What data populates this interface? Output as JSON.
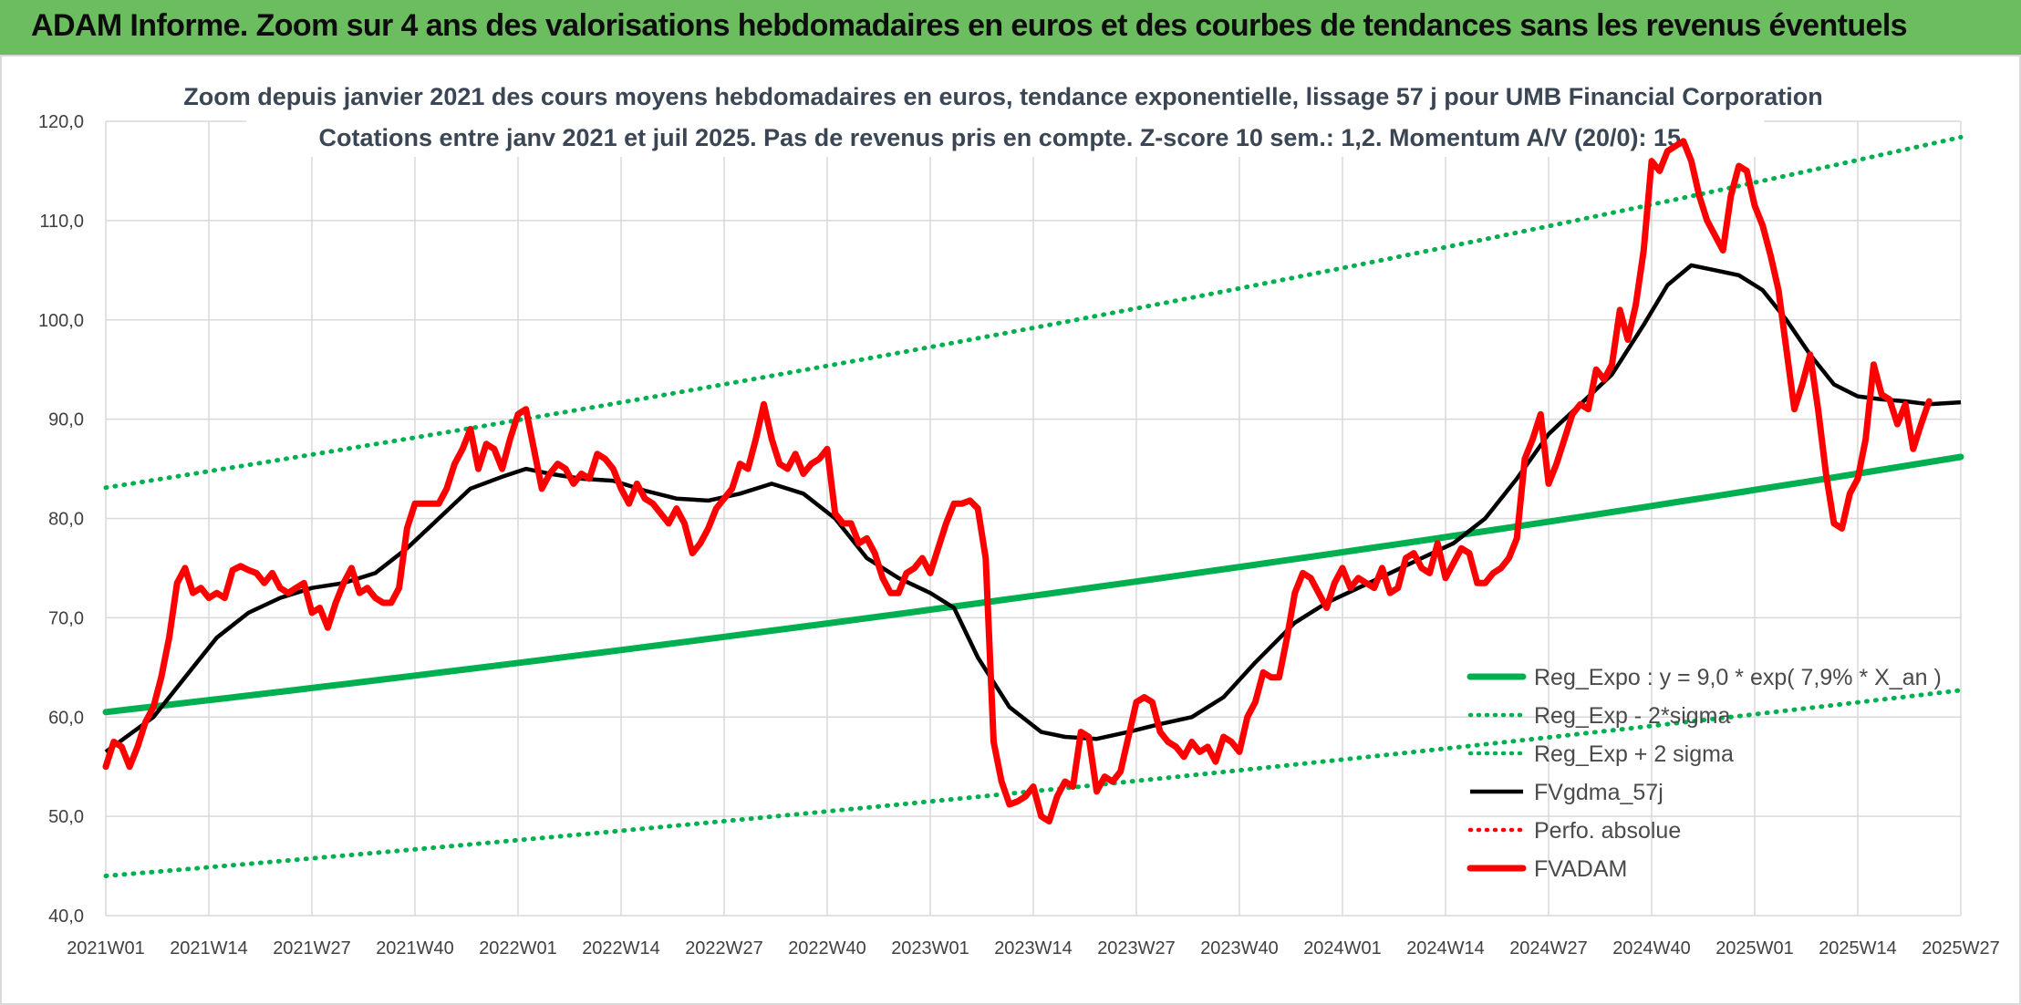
{
  "header": {
    "title": "ADAM Informe. Zoom sur 4 ans des valorisations hebdomadaires en euros et des courbes de tendances sans les revenus éventuels"
  },
  "colors": {
    "header_bg": "#6cbd5f",
    "reg_expo": "#00b050",
    "sigma_bands": "#00b050",
    "fvgdma": "#000000",
    "perfo_absolue": "#ff0000",
    "fvadam": "#ff0000"
  },
  "chart_data": {
    "type": "line",
    "title": "Zoom depuis janvier 2021 des cours moyens hebdomadaires en euros, tendance exponentielle, lissage 57 j pour UMB Financial Corporation",
    "subtitle": "Cotations entre janv 2021 et juil 2025. Pas de revenus pris en compte. Z-score 10 sem.: 1,2. Momentum A/V (20/0): 15.",
    "xlabel": "",
    "ylabel": "",
    "ylim": [
      40,
      120
    ],
    "yticks": [
      "40,0",
      "50,0",
      "60,0",
      "70,0",
      "80,0",
      "90,0",
      "100,0",
      "110,0",
      "120,0"
    ],
    "xticks": [
      "2021W01",
      "2021W14",
      "2021W27",
      "2021W40",
      "2022W01",
      "2022W14",
      "2022W27",
      "2022W40",
      "2023W01",
      "2023W14",
      "2023W27",
      "2023W40",
      "2024W01",
      "2024W14",
      "2024W27",
      "2024W40",
      "2025W01",
      "2025W14",
      "2025W27"
    ],
    "x_range_weeks": [
      0,
      234
    ],
    "grid": true,
    "legend_position": "bottom-right",
    "series": [
      {
        "name": "Reg_Expo : y = 9,0 * exp( 7,9% *  X_an )",
        "style": "solid-thick",
        "color": "#00b050",
        "x": [
          0,
          234
        ],
        "growth_per_year": 0.079,
        "y_start": 60.5,
        "y_end": 86.2
      },
      {
        "name": "Reg_Exp - 2*sigma",
        "style": "dotted",
        "color": "#00b050",
        "x": [
          0,
          234
        ],
        "y_start": 44.0,
        "y_end": 62.7
      },
      {
        "name": "Reg_Exp + 2 sigma",
        "style": "dotted",
        "color": "#00b050",
        "x": [
          0,
          234
        ],
        "y_start": 83.1,
        "y_end": 118.4
      },
      {
        "name": "FVgdma_57j",
        "style": "solid",
        "color": "#000000",
        "points": [
          [
            0,
            56.5
          ],
          [
            6,
            60.0
          ],
          [
            10,
            64.0
          ],
          [
            14,
            68.0
          ],
          [
            18,
            70.5
          ],
          [
            22,
            72.0
          ],
          [
            26,
            73.0
          ],
          [
            30,
            73.5
          ],
          [
            34,
            74.5
          ],
          [
            38,
            77.0
          ],
          [
            42,
            80.0
          ],
          [
            46,
            83.0
          ],
          [
            50,
            84.2
          ],
          [
            53,
            85.0
          ],
          [
            56,
            84.5
          ],
          [
            60,
            84.0
          ],
          [
            64,
            83.8
          ],
          [
            68,
            82.8
          ],
          [
            72,
            82.0
          ],
          [
            76,
            81.8
          ],
          [
            80,
            82.5
          ],
          [
            84,
            83.5
          ],
          [
            88,
            82.5
          ],
          [
            92,
            80.0
          ],
          [
            96,
            76.0
          ],
          [
            100,
            74.0
          ],
          [
            104,
            72.5
          ],
          [
            107,
            71.0
          ],
          [
            110,
            66.0
          ],
          [
            114,
            61.0
          ],
          [
            118,
            58.5
          ],
          [
            121,
            58.0
          ],
          [
            125,
            57.8
          ],
          [
            129,
            58.5
          ],
          [
            133,
            59.3
          ],
          [
            137,
            60.0
          ],
          [
            141,
            62.0
          ],
          [
            145,
            65.5
          ],
          [
            150,
            69.5
          ],
          [
            154,
            71.5
          ],
          [
            158,
            73.0
          ],
          [
            162,
            74.5
          ],
          [
            166,
            76.0
          ],
          [
            170,
            77.5
          ],
          [
            174,
            80.0
          ],
          [
            178,
            84.0
          ],
          [
            182,
            88.5
          ],
          [
            186,
            91.5
          ],
          [
            190,
            94.5
          ],
          [
            194,
            99.5
          ],
          [
            197,
            103.5
          ],
          [
            200,
            105.5
          ],
          [
            203,
            105.0
          ],
          [
            206,
            104.5
          ],
          [
            209,
            103.0
          ],
          [
            212,
            100.0
          ],
          [
            215,
            96.5
          ],
          [
            218,
            93.5
          ],
          [
            221,
            92.3
          ],
          [
            224,
            92.0
          ],
          [
            227,
            91.8
          ],
          [
            230,
            91.5
          ],
          [
            234,
            91.7
          ]
        ]
      },
      {
        "name": "Perfo. absolue",
        "style": "dotted",
        "color": "#ff0000",
        "points": []
      },
      {
        "name": "FVADAM",
        "style": "solid-thick",
        "color": "#ff0000",
        "points": [
          [
            0,
            55.0
          ],
          [
            1,
            57.5
          ],
          [
            2,
            57.0
          ],
          [
            3,
            55.0
          ],
          [
            4,
            57.0
          ],
          [
            5,
            59.5
          ],
          [
            6,
            61.0
          ],
          [
            7,
            64.0
          ],
          [
            8,
            68.0
          ],
          [
            9,
            73.5
          ],
          [
            10,
            75.0
          ],
          [
            11,
            72.5
          ],
          [
            12,
            73.0
          ],
          [
            13,
            72.0
          ],
          [
            14,
            72.5
          ],
          [
            15,
            72.0
          ],
          [
            16,
            74.8
          ],
          [
            17,
            75.2
          ],
          [
            18,
            74.8
          ],
          [
            19,
            74.5
          ],
          [
            20,
            73.5
          ],
          [
            21,
            74.5
          ],
          [
            22,
            73.0
          ],
          [
            23,
            72.5
          ],
          [
            24,
            73.0
          ],
          [
            25,
            73.5
          ],
          [
            26,
            70.5
          ],
          [
            27,
            71.0
          ],
          [
            28,
            69.0
          ],
          [
            29,
            71.5
          ],
          [
            30,
            73.5
          ],
          [
            31,
            75.0
          ],
          [
            32,
            72.5
          ],
          [
            33,
            73.0
          ],
          [
            34,
            72.0
          ],
          [
            35,
            71.5
          ],
          [
            36,
            71.5
          ],
          [
            37,
            73.0
          ],
          [
            38,
            79.0
          ],
          [
            39,
            81.5
          ],
          [
            40,
            81.5
          ],
          [
            41,
            81.5
          ],
          [
            42,
            81.5
          ],
          [
            43,
            83.0
          ],
          [
            44,
            85.5
          ],
          [
            45,
            87.0
          ],
          [
            46,
            89.0
          ],
          [
            47,
            85.0
          ],
          [
            48,
            87.5
          ],
          [
            49,
            87.0
          ],
          [
            50,
            85.0
          ],
          [
            51,
            88.0
          ],
          [
            52,
            90.5
          ],
          [
            53,
            91.0
          ],
          [
            54,
            87.0
          ],
          [
            55,
            83.0
          ],
          [
            56,
            84.5
          ],
          [
            57,
            85.5
          ],
          [
            58,
            85.0
          ],
          [
            59,
            83.5
          ],
          [
            60,
            84.5
          ],
          [
            61,
            84.0
          ],
          [
            62,
            86.5
          ],
          [
            63,
            86.0
          ],
          [
            64,
            85.0
          ],
          [
            65,
            83.0
          ],
          [
            66,
            81.5
          ],
          [
            67,
            83.5
          ],
          [
            68,
            82.0
          ],
          [
            69,
            81.5
          ],
          [
            70,
            80.5
          ],
          [
            71,
            79.5
          ],
          [
            72,
            81.0
          ],
          [
            73,
            79.5
          ],
          [
            74,
            76.5
          ],
          [
            75,
            77.5
          ],
          [
            76,
            79.0
          ],
          [
            77,
            81.0
          ],
          [
            78,
            82.0
          ],
          [
            79,
            83.0
          ],
          [
            80,
            85.5
          ],
          [
            81,
            85.0
          ],
          [
            82,
            88.0
          ],
          [
            83,
            91.5
          ],
          [
            84,
            88.0
          ],
          [
            85,
            85.5
          ],
          [
            86,
            85.0
          ],
          [
            87,
            86.5
          ],
          [
            88,
            84.5
          ],
          [
            89,
            85.5
          ],
          [
            90,
            86.0
          ],
          [
            91,
            87.0
          ],
          [
            92,
            80.5
          ],
          [
            93,
            79.5
          ],
          [
            94,
            79.5
          ],
          [
            95,
            77.5
          ],
          [
            96,
            78.0
          ],
          [
            97,
            76.5
          ],
          [
            98,
            74.0
          ],
          [
            99,
            72.5
          ],
          [
            100,
            72.5
          ],
          [
            101,
            74.5
          ],
          [
            102,
            75.0
          ],
          [
            103,
            76.0
          ],
          [
            104,
            74.5
          ],
          [
            105,
            77.0
          ],
          [
            106,
            79.5
          ],
          [
            107,
            81.5
          ],
          [
            108,
            81.5
          ],
          [
            109,
            81.8
          ],
          [
            110,
            81.0
          ],
          [
            111,
            76.0
          ],
          [
            112,
            57.5
          ],
          [
            113,
            53.5
          ],
          [
            114,
            51.2
          ],
          [
            115,
            51.5
          ],
          [
            116,
            52.0
          ],
          [
            117,
            53.0
          ],
          [
            118,
            50.0
          ],
          [
            119,
            49.5
          ],
          [
            120,
            52.0
          ],
          [
            121,
            53.5
          ],
          [
            122,
            53.0
          ],
          [
            123,
            58.5
          ],
          [
            124,
            58.0
          ],
          [
            125,
            52.5
          ],
          [
            126,
            54.0
          ],
          [
            127,
            53.5
          ],
          [
            128,
            54.5
          ],
          [
            129,
            58.0
          ],
          [
            130,
            61.5
          ],
          [
            131,
            62.0
          ],
          [
            132,
            61.5
          ],
          [
            133,
            58.5
          ],
          [
            134,
            57.5
          ],
          [
            135,
            57.0
          ],
          [
            136,
            56.0
          ],
          [
            137,
            57.5
          ],
          [
            138,
            56.5
          ],
          [
            139,
            57.0
          ],
          [
            140,
            55.5
          ],
          [
            141,
            58.0
          ],
          [
            142,
            57.5
          ],
          [
            143,
            56.5
          ],
          [
            144,
            60.0
          ],
          [
            145,
            61.5
          ],
          [
            146,
            64.5
          ],
          [
            147,
            64.0
          ],
          [
            148,
            64.0
          ],
          [
            149,
            68.0
          ],
          [
            150,
            72.5
          ],
          [
            151,
            74.5
          ],
          [
            152,
            74.0
          ],
          [
            153,
            72.5
          ],
          [
            154,
            71.0
          ],
          [
            155,
            73.5
          ],
          [
            156,
            75.0
          ],
          [
            157,
            73.0
          ],
          [
            158,
            74.0
          ],
          [
            159,
            73.5
          ],
          [
            160,
            73.0
          ],
          [
            161,
            75.0
          ],
          [
            162,
            72.5
          ],
          [
            163,
            73.0
          ],
          [
            164,
            76.0
          ],
          [
            165,
            76.5
          ],
          [
            166,
            75.0
          ],
          [
            167,
            74.5
          ],
          [
            168,
            77.5
          ],
          [
            169,
            74.0
          ],
          [
            170,
            75.5
          ],
          [
            171,
            77.0
          ],
          [
            172,
            76.5
          ],
          [
            173,
            73.5
          ],
          [
            174,
            73.5
          ],
          [
            175,
            74.5
          ],
          [
            176,
            75.0
          ],
          [
            177,
            76.0
          ],
          [
            178,
            78.0
          ],
          [
            179,
            86.0
          ],
          [
            180,
            88.0
          ],
          [
            181,
            90.5
          ],
          [
            182,
            83.5
          ],
          [
            183,
            85.5
          ],
          [
            184,
            88.0
          ],
          [
            185,
            90.5
          ],
          [
            186,
            91.5
          ],
          [
            187,
            91.0
          ],
          [
            188,
            95.0
          ],
          [
            189,
            94.0
          ],
          [
            190,
            95.5
          ],
          [
            191,
            101.0
          ],
          [
            192,
            98.0
          ],
          [
            193,
            101.5
          ],
          [
            194,
            107.0
          ],
          [
            195,
            116.0
          ],
          [
            196,
            115.0
          ],
          [
            197,
            117.0
          ],
          [
            198,
            117.5
          ],
          [
            199,
            118.0
          ],
          [
            200,
            116.0
          ],
          [
            201,
            112.5
          ],
          [
            202,
            110.0
          ],
          [
            203,
            108.5
          ],
          [
            204,
            107.0
          ],
          [
            205,
            112.5
          ],
          [
            206,
            115.5
          ],
          [
            207,
            115.0
          ],
          [
            208,
            111.5
          ],
          [
            209,
            109.5
          ],
          [
            210,
            106.5
          ],
          [
            211,
            103.0
          ],
          [
            212,
            97.0
          ],
          [
            213,
            91.0
          ],
          [
            214,
            93.5
          ],
          [
            215,
            96.5
          ],
          [
            216,
            91.0
          ],
          [
            217,
            84.5
          ],
          [
            218,
            79.5
          ],
          [
            219,
            79.0
          ],
          [
            220,
            82.5
          ],
          [
            221,
            84.0
          ],
          [
            222,
            88.0
          ],
          [
            223,
            95.5
          ],
          [
            224,
            92.5
          ],
          [
            225,
            92.0
          ],
          [
            226,
            89.5
          ],
          [
            227,
            91.5
          ],
          [
            228,
            87.0
          ],
          [
            229,
            89.5
          ],
          [
            230,
            91.8
          ]
        ]
      }
    ]
  }
}
